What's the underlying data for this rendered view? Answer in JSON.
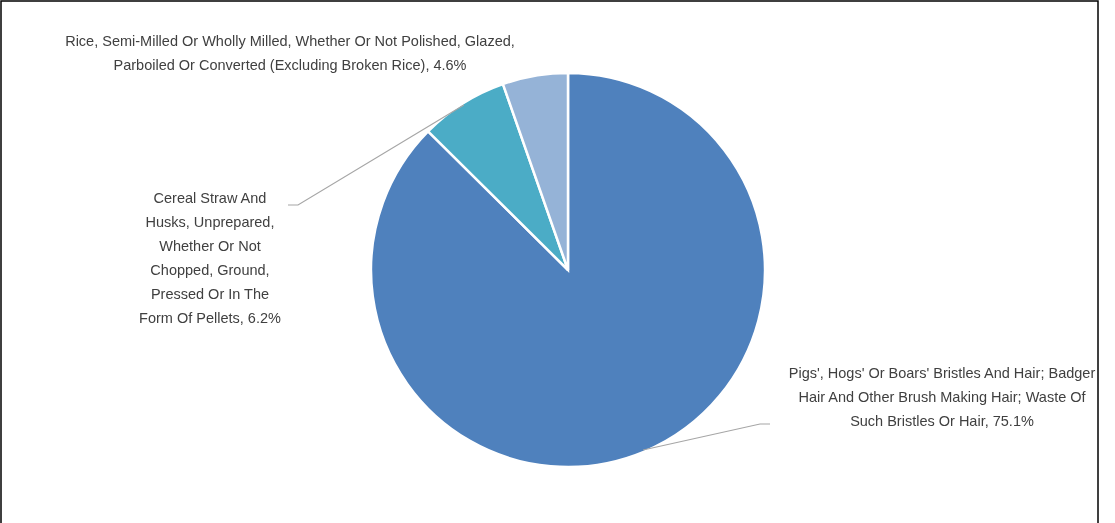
{
  "chart_data": {
    "type": "pie",
    "categories": [
      "Pigs', Hogs' Or Boars' Bristles And Hair; Badger Hair And Other Brush Making Hair; Waste Of Such Bristles Or Hair",
      "Cereal Straw And Husks, Unprepared, Whether Or Not Chopped, Ground, Pressed Or In The Form Of Pellets",
      "Rice, Semi-Milled Or Wholly Milled, Whether Or Not Polished, Glazed, Parboiled Or Converted (Excluding Broken Rice)"
    ],
    "values": [
      75.1,
      6.2,
      4.6
    ],
    "value_labels": [
      "75.1%",
      "6.2%",
      "4.6%"
    ],
    "colors": [
      "#4f81bd",
      "#4bacc6",
      "#95b3d7"
    ]
  }
}
